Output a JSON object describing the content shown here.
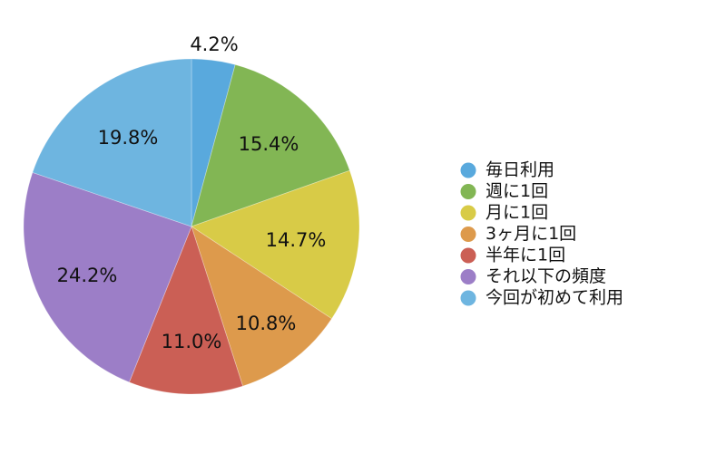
{
  "colors": {
    "background": "#ffffff",
    "text": "#111111"
  },
  "chart_data": {
    "type": "pie",
    "title": "",
    "start": "top",
    "direction": "clockwise",
    "legend_position": "right",
    "categories": [
      "毎日利用",
      "週に1回",
      "月に1回",
      "3ヶ月に1回",
      "半年に1回",
      "それ以下の頻度",
      "今回が初めて利用"
    ],
    "values": [
      4.2,
      15.4,
      14.7,
      10.8,
      11.0,
      24.2,
      19.8
    ],
    "labels": [
      "4.2%",
      "15.4%",
      "14.7%",
      "10.8%",
      "11.0%",
      "24.2%",
      "19.8%"
    ],
    "colors": [
      "#59a9dd",
      "#82b654",
      "#d8cb47",
      "#dd9a4c",
      "#cb5f55",
      "#9c7ec7",
      "#6eb5e0"
    ]
  }
}
